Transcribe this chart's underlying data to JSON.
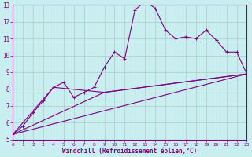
{
  "xlabel": "Windchill (Refroidissement éolien,°C)",
  "ylabel": "",
  "bg_color": "#c8eef0",
  "line_color": "#800080",
  "grid_color": "#b0c8c8",
  "xmin": 0,
  "xmax": 23,
  "ymin": 5,
  "ymax": 13,
  "yticks": [
    5,
    6,
    7,
    8,
    9,
    10,
    11,
    12,
    13
  ],
  "xticks": [
    0,
    1,
    2,
    3,
    4,
    5,
    6,
    7,
    8,
    9,
    10,
    11,
    12,
    13,
    14,
    15,
    16,
    17,
    18,
    19,
    20,
    21,
    22,
    23
  ],
  "series1_x": [
    0,
    1,
    2,
    3,
    4,
    5,
    6,
    7,
    8,
    9,
    10,
    11,
    12,
    13,
    14,
    15,
    16,
    17,
    18,
    19,
    20,
    21,
    22,
    23
  ],
  "series1_y": [
    5.3,
    5.8,
    6.6,
    7.3,
    8.1,
    8.4,
    7.5,
    7.8,
    8.1,
    9.3,
    10.2,
    9.8,
    12.7,
    13.2,
    12.8,
    11.5,
    11.0,
    11.1,
    11.0,
    11.5,
    10.9,
    10.2,
    10.2,
    8.9
  ],
  "series2_x": [
    0,
    23
  ],
  "series2_y": [
    5.3,
    8.9
  ],
  "series3_x": [
    0,
    9,
    23
  ],
  "series3_y": [
    5.3,
    7.8,
    8.9
  ],
  "series4_x": [
    0,
    4,
    9,
    23
  ],
  "series4_y": [
    5.3,
    8.1,
    7.8,
    8.9
  ]
}
